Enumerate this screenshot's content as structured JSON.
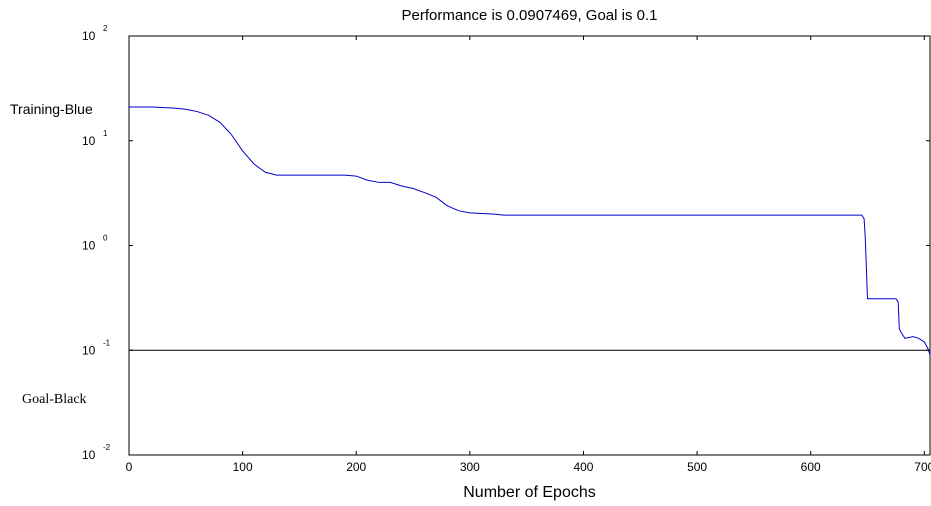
{
  "chart_data": {
    "type": "line",
    "title": "Performance is 0.0907469, Goal is 0.1",
    "xlabel": "Number of Epochs",
    "ylabel": "",
    "xlim": [
      0,
      705
    ],
    "ylim": [
      0.01,
      100
    ],
    "yscale": "log",
    "grid": false,
    "x_ticks": [
      0,
      100,
      200,
      300,
      400,
      500,
      600,
      700
    ],
    "x_tick_labels": [
      "0",
      "100",
      "200",
      "300",
      "400",
      "500",
      "600",
      "700"
    ],
    "y_ticks": [
      {
        "value": 100,
        "base": "10",
        "exp": "2"
      },
      {
        "value": 10,
        "base": "10",
        "exp": "1"
      },
      {
        "value": 1,
        "base": "10",
        "exp": "0"
      },
      {
        "value": 0.1,
        "base": "10",
        "exp": "-1"
      },
      {
        "value": 0.01,
        "base": "10",
        "exp": "-2"
      }
    ],
    "annotations": [
      {
        "text": "Training-Blue",
        "anchor_value": 20
      },
      {
        "text": "Goal-Black",
        "anchor_value": 0.035
      }
    ],
    "series": [
      {
        "color": "#0000cc",
        "x": [
          0,
          20,
          40,
          50,
          60,
          70,
          80,
          90,
          100,
          110,
          120,
          130,
          140,
          150,
          190,
          200,
          210,
          220,
          230,
          240,
          250,
          260,
          270,
          280,
          290,
          300,
          320,
          330,
          400,
          500,
          600,
          640,
          645,
          647,
          648,
          650,
          660,
          670,
          675,
          677,
          678,
          680,
          683,
          690,
          695,
          700,
          703,
          705
        ],
        "y": [
          21,
          21,
          20.5,
          20,
          19,
          17.5,
          15,
          11.5,
          8,
          6,
          5,
          4.7,
          4.7,
          4.7,
          4.7,
          4.6,
          4.2,
          4,
          4,
          3.7,
          3.5,
          3.2,
          2.9,
          2.4,
          2.15,
          2.05,
          2.0,
          1.95,
          1.95,
          1.95,
          1.95,
          1.95,
          1.95,
          1.8,
          1.2,
          0.31,
          0.31,
          0.31,
          0.31,
          0.29,
          0.16,
          0.145,
          0.13,
          0.135,
          0.13,
          0.12,
          0.105,
          0.0907
        ]
      },
      {
        "color": "#000000",
        "x": [
          0,
          705
        ],
        "y": [
          0.1,
          0.1
        ]
      }
    ]
  }
}
